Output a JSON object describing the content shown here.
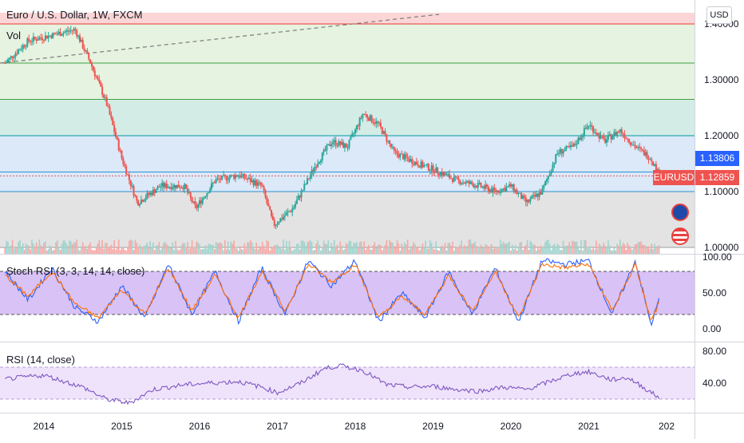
{
  "header": {
    "title": "Euro / U.S. Dollar, 1W, FXCM",
    "volume_label": "Vol",
    "currency_button": "USD"
  },
  "badges": {
    "current_price": "1.13806",
    "symbol": "EURUSD",
    "last_price": "1.12859"
  },
  "colors": {
    "up": "#26a69a",
    "down": "#ef5350",
    "stoch_k": "#2962ff",
    "stoch_d": "#ff6d00",
    "rsi": "#7e57c2",
    "stoch_band": "#d9c2f5",
    "rsi_band": "#efe3fb"
  },
  "chart_data": [
    {
      "type": "candlestick",
      "title": "Euro / U.S. Dollar, 1W, FXCM",
      "x_ticks": [
        "2014",
        "2015",
        "2016",
        "2017",
        "2018",
        "2019",
        "2020",
        "2021",
        "202"
      ],
      "y_ticks": [
        "1.40000",
        "1.30000",
        "1.20000",
        "1.10000",
        "1.00000"
      ],
      "ylim": [
        1.0,
        1.42
      ],
      "series": [
        {
          "values": [
            {
              "x": 2013.5,
              "y": 1.33
            },
            {
              "x": 2013.8,
              "y": 1.37
            },
            {
              "x": 2014.1,
              "y": 1.38
            },
            {
              "x": 2014.4,
              "y": 1.39
            },
            {
              "x": 2014.6,
              "y": 1.33
            },
            {
              "x": 2014.8,
              "y": 1.26
            },
            {
              "x": 2015.0,
              "y": 1.16
            },
            {
              "x": 2015.2,
              "y": 1.08
            },
            {
              "x": 2015.5,
              "y": 1.11
            },
            {
              "x": 2015.8,
              "y": 1.11
            },
            {
              "x": 2015.95,
              "y": 1.07
            },
            {
              "x": 2016.2,
              "y": 1.12
            },
            {
              "x": 2016.5,
              "y": 1.13
            },
            {
              "x": 2016.8,
              "y": 1.11
            },
            {
              "x": 2016.95,
              "y": 1.04
            },
            {
              "x": 2017.2,
              "y": 1.07
            },
            {
              "x": 2017.5,
              "y": 1.15
            },
            {
              "x": 2017.7,
              "y": 1.19
            },
            {
              "x": 2017.9,
              "y": 1.18
            },
            {
              "x": 2018.1,
              "y": 1.24
            },
            {
              "x": 2018.3,
              "y": 1.22
            },
            {
              "x": 2018.5,
              "y": 1.17
            },
            {
              "x": 2018.8,
              "y": 1.15
            },
            {
              "x": 2019.0,
              "y": 1.14
            },
            {
              "x": 2019.3,
              "y": 1.12
            },
            {
              "x": 2019.6,
              "y": 1.11
            },
            {
              "x": 2019.8,
              "y": 1.1
            },
            {
              "x": 2020.0,
              "y": 1.11
            },
            {
              "x": 2020.2,
              "y": 1.08
            },
            {
              "x": 2020.4,
              "y": 1.1
            },
            {
              "x": 2020.6,
              "y": 1.17
            },
            {
              "x": 2020.8,
              "y": 1.18
            },
            {
              "x": 2021.0,
              "y": 1.22
            },
            {
              "x": 2021.2,
              "y": 1.19
            },
            {
              "x": 2021.4,
              "y": 1.21
            },
            {
              "x": 2021.6,
              "y": 1.18
            },
            {
              "x": 2021.8,
              "y": 1.16
            },
            {
              "x": 2021.9,
              "y": 1.13
            }
          ]
        }
      ],
      "fib_levels": [
        1.0,
        1.1,
        1.135,
        1.2,
        1.265,
        1.33,
        1.4
      ]
    },
    {
      "type": "line",
      "title": "Stoch RSI (3, 3, 14, 14, close)",
      "y_ticks": [
        "100.00",
        "50.00",
        "0.00"
      ],
      "ylim": [
        0,
        100
      ],
      "bands": [
        20,
        80
      ],
      "series": [
        {
          "values": [
            {
              "x": 2013.5,
              "y": 80
            },
            {
              "x": 2013.8,
              "y": 40
            },
            {
              "x": 2014.1,
              "y": 85
            },
            {
              "x": 2014.4,
              "y": 30
            },
            {
              "x": 2014.7,
              "y": 10
            },
            {
              "x": 2015.0,
              "y": 60
            },
            {
              "x": 2015.3,
              "y": 15
            },
            {
              "x": 2015.6,
              "y": 90
            },
            {
              "x": 2015.9,
              "y": 20
            },
            {
              "x": 2016.2,
              "y": 80
            },
            {
              "x": 2016.5,
              "y": 10
            },
            {
              "x": 2016.8,
              "y": 85
            },
            {
              "x": 2017.1,
              "y": 20
            },
            {
              "x": 2017.4,
              "y": 95
            },
            {
              "x": 2017.7,
              "y": 60
            },
            {
              "x": 2018.0,
              "y": 95
            },
            {
              "x": 2018.3,
              "y": 10
            },
            {
              "x": 2018.6,
              "y": 50
            },
            {
              "x": 2018.9,
              "y": 15
            },
            {
              "x": 2019.2,
              "y": 80
            },
            {
              "x": 2019.5,
              "y": 20
            },
            {
              "x": 2019.8,
              "y": 85
            },
            {
              "x": 2020.1,
              "y": 10
            },
            {
              "x": 2020.4,
              "y": 95
            },
            {
              "x": 2020.7,
              "y": 90
            },
            {
              "x": 2021.0,
              "y": 95
            },
            {
              "x": 2021.3,
              "y": 20
            },
            {
              "x": 2021.6,
              "y": 95
            },
            {
              "x": 2021.8,
              "y": 5
            },
            {
              "x": 2021.9,
              "y": 40
            }
          ]
        },
        {
          "values": [
            {
              "x": 2013.5,
              "y": 75
            },
            {
              "x": 2013.8,
              "y": 45
            },
            {
              "x": 2014.1,
              "y": 80
            },
            {
              "x": 2014.4,
              "y": 35
            },
            {
              "x": 2014.7,
              "y": 15
            },
            {
              "x": 2015.0,
              "y": 55
            },
            {
              "x": 2015.3,
              "y": 20
            },
            {
              "x": 2015.6,
              "y": 85
            },
            {
              "x": 2015.9,
              "y": 25
            },
            {
              "x": 2016.2,
              "y": 75
            },
            {
              "x": 2016.5,
              "y": 15
            },
            {
              "x": 2016.8,
              "y": 80
            },
            {
              "x": 2017.1,
              "y": 25
            },
            {
              "x": 2017.4,
              "y": 90
            },
            {
              "x": 2017.7,
              "y": 65
            },
            {
              "x": 2018.0,
              "y": 90
            },
            {
              "x": 2018.3,
              "y": 15
            },
            {
              "x": 2018.6,
              "y": 45
            },
            {
              "x": 2018.9,
              "y": 20
            },
            {
              "x": 2019.2,
              "y": 75
            },
            {
              "x": 2019.5,
              "y": 25
            },
            {
              "x": 2019.8,
              "y": 80
            },
            {
              "x": 2020.1,
              "y": 15
            },
            {
              "x": 2020.4,
              "y": 90
            },
            {
              "x": 2020.7,
              "y": 85
            },
            {
              "x": 2021.0,
              "y": 90
            },
            {
              "x": 2021.3,
              "y": 25
            },
            {
              "x": 2021.6,
              "y": 90
            },
            {
              "x": 2021.8,
              "y": 10
            },
            {
              "x": 2021.9,
              "y": 35
            }
          ]
        }
      ]
    },
    {
      "type": "line",
      "title": "RSI (14, close)",
      "y_ticks": [
        "80.00",
        "40.00"
      ],
      "ylim": [
        20,
        100
      ],
      "bands": [
        30,
        70
      ],
      "series": [
        {
          "values": [
            {
              "x": 2013.5,
              "y": 55
            },
            {
              "x": 2014.0,
              "y": 60
            },
            {
              "x": 2014.5,
              "y": 45
            },
            {
              "x": 2014.8,
              "y": 30
            },
            {
              "x": 2015.1,
              "y": 25
            },
            {
              "x": 2015.4,
              "y": 42
            },
            {
              "x": 2015.8,
              "y": 48
            },
            {
              "x": 2016.1,
              "y": 50
            },
            {
              "x": 2016.5,
              "y": 52
            },
            {
              "x": 2016.8,
              "y": 45
            },
            {
              "x": 2017.0,
              "y": 38
            },
            {
              "x": 2017.3,
              "y": 50
            },
            {
              "x": 2017.6,
              "y": 68
            },
            {
              "x": 2017.8,
              "y": 72
            },
            {
              "x": 2018.1,
              "y": 66
            },
            {
              "x": 2018.4,
              "y": 48
            },
            {
              "x": 2018.7,
              "y": 45
            },
            {
              "x": 2019.0,
              "y": 46
            },
            {
              "x": 2019.3,
              "y": 42
            },
            {
              "x": 2019.6,
              "y": 40
            },
            {
              "x": 2019.9,
              "y": 45
            },
            {
              "x": 2020.2,
              "y": 42
            },
            {
              "x": 2020.5,
              "y": 52
            },
            {
              "x": 2020.8,
              "y": 62
            },
            {
              "x": 2021.0,
              "y": 64
            },
            {
              "x": 2021.3,
              "y": 54
            },
            {
              "x": 2021.5,
              "y": 57
            },
            {
              "x": 2021.7,
              "y": 45
            },
            {
              "x": 2021.9,
              "y": 32
            }
          ]
        }
      ]
    }
  ]
}
